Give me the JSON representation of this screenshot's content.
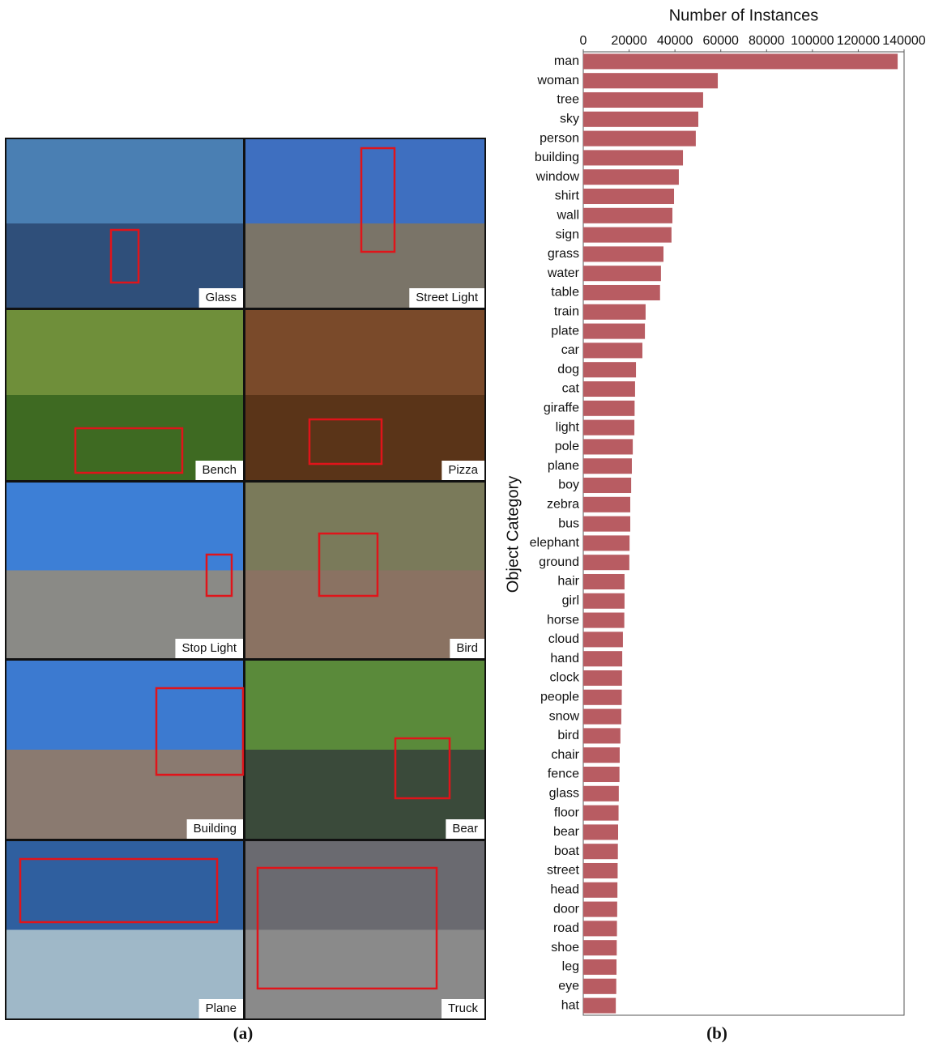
{
  "figure": {
    "panels": [
      {
        "label": "Glass"
      },
      {
        "label": "Street Light"
      },
      {
        "label": "Bench"
      },
      {
        "label": "Pizza"
      },
      {
        "label": "Stop Light"
      },
      {
        "label": "Bird"
      },
      {
        "label": "Building"
      },
      {
        "label": "Bear"
      },
      {
        "label": "Plane"
      },
      {
        "label": "Truck"
      }
    ],
    "captions": [
      "(a)",
      "(b)"
    ]
  },
  "chart_data": {
    "type": "barh",
    "title": "Number of Instances",
    "y_label": "Object Category",
    "categories": [
      "man",
      "woman",
      "tree",
      "sky",
      "person",
      "building",
      "window",
      "shirt",
      "wall",
      "sign",
      "grass",
      "water",
      "table",
      "train",
      "plate",
      "car",
      "dog",
      "cat",
      "giraffe",
      "light",
      "pole",
      "plane",
      "boy",
      "zebra",
      "bus",
      "elephant",
      "ground",
      "hair",
      "girl",
      "horse",
      "cloud",
      "hand",
      "clock",
      "people",
      "snow",
      "bird",
      "chair",
      "fence",
      "glass",
      "floor",
      "bear",
      "boat",
      "street",
      "head",
      "door",
      "road",
      "shoe",
      "leg",
      "eye",
      "hat"
    ],
    "values": [
      137200,
      58700,
      52300,
      50200,
      49100,
      43500,
      41700,
      39600,
      38900,
      38500,
      35000,
      33900,
      33500,
      27200,
      26900,
      25800,
      23000,
      22600,
      22400,
      22300,
      21600,
      21200,
      20900,
      20500,
      20500,
      20200,
      20100,
      18000,
      18000,
      17900,
      17300,
      17000,
      16900,
      16800,
      16600,
      16200,
      15900,
      15800,
      15500,
      15400,
      15200,
      15100,
      15000,
      14900,
      14800,
      14700,
      14600,
      14500,
      14400,
      14200
    ],
    "color": "#b85c62",
    "xlim": [
      0,
      140000
    ],
    "xticks": [
      0,
      20000,
      40000,
      60000,
      80000,
      100000,
      120000,
      140000
    ],
    "grid": false
  }
}
